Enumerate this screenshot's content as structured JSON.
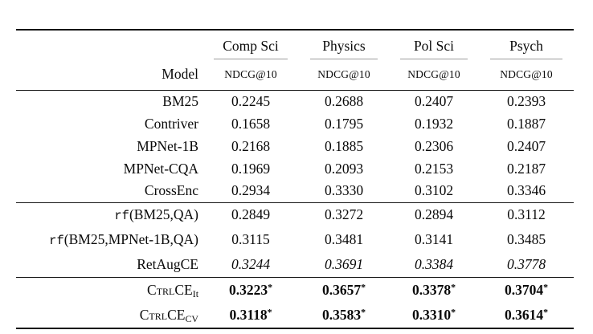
{
  "table": {
    "header": {
      "model_label": "Model",
      "metric_label": "NDCG@10",
      "subjects": [
        "Comp Sci",
        "Physics",
        "Pol Sci",
        "Psych"
      ]
    },
    "groups": [
      {
        "rows": [
          {
            "label": "BM25",
            "values": [
              "0.2245",
              "0.2688",
              "0.2407",
              "0.2393"
            ]
          },
          {
            "label": "Contriver",
            "values": [
              "0.1658",
              "0.1795",
              "0.1932",
              "0.1887"
            ]
          },
          {
            "label": "MPNet-1B",
            "values": [
              "0.2168",
              "0.1885",
              "0.2306",
              "0.2407"
            ]
          },
          {
            "label": "MPNet-CQA",
            "values": [
              "0.1969",
              "0.2093",
              "0.2153",
              "0.2187"
            ]
          },
          {
            "label": "CrossEnc",
            "values": [
              "0.2934",
              "0.3330",
              "0.3102",
              "0.3346"
            ]
          }
        ]
      },
      {
        "rows": [
          {
            "label_mono": "rf",
            "label_rest": "(BM25,QA)",
            "values": [
              "0.2849",
              "0.3272",
              "0.2894",
              "0.3112"
            ]
          },
          {
            "label_mono": "rf",
            "label_rest": "(BM25,MPNet-1B,QA)",
            "values": [
              "0.3115",
              "0.3481",
              "0.3141",
              "0.3485"
            ]
          },
          {
            "label": "RetAugCE",
            "style": "italic",
            "values": [
              "0.3244",
              "0.3691",
              "0.3384",
              "0.3778"
            ]
          }
        ]
      },
      {
        "rows": [
          {
            "label_sc": "Ctrl",
            "label_main": "CE",
            "label_sub": "It",
            "star": "*",
            "values": [
              "0.3223",
              "0.3657",
              "0.3378",
              "0.3704"
            ]
          },
          {
            "label_sc": "Ctrl",
            "label_main": "CE",
            "label_sub": "CV",
            "star": "*",
            "values": [
              "0.3118",
              "0.3583",
              "0.3310",
              "0.3614"
            ]
          }
        ]
      }
    ]
  }
}
